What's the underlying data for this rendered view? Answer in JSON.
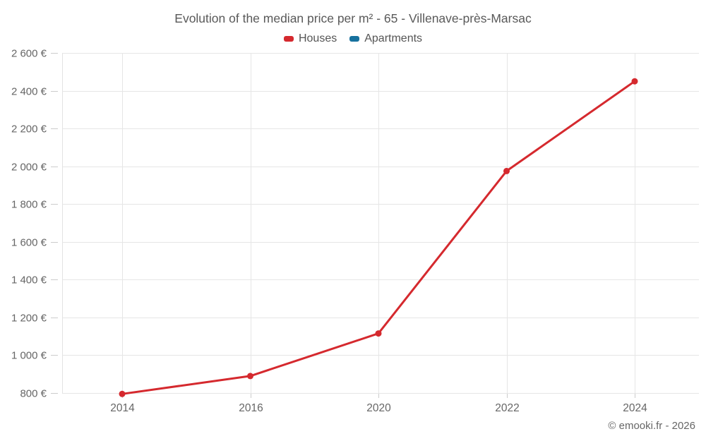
{
  "header": {
    "title": "Evolution of the median price per m² - 65 - Villenave-près-Marsac"
  },
  "legend": {
    "items": [
      {
        "label": "Houses",
        "color": "#d5292e"
      },
      {
        "label": "Apartments",
        "color": "#17719e"
      }
    ]
  },
  "footer": {
    "credit": "© emooki.fr - 2026"
  },
  "colors": {
    "houses_line": "#d5292e",
    "apartments_line": "#17719e",
    "gridline": "#e6e6e6",
    "axis_line": "#e3e3e3",
    "tick": "#cccccc",
    "axis_label": "#666666",
    "title_text": "#595959"
  },
  "chart_data": {
    "type": "line",
    "title": "Evolution of the median price per m² - 65 - Villenave-près-Marsac",
    "categories": [
      "2014",
      "2016",
      "2020",
      "2022",
      "2024"
    ],
    "series": [
      {
        "name": "Houses",
        "color": "#d5292e",
        "values": [
          795,
          890,
          1115,
          1975,
          2450
        ]
      },
      {
        "name": "Apartments",
        "color": "#17719e",
        "values": []
      }
    ],
    "xlabel": "",
    "ylabel": "",
    "y_min": 800,
    "y_max": 2600,
    "y_step": 200,
    "y_tick_labels": [
      "800 €",
      "1 000 €",
      "1 200 €",
      "1 400 €",
      "1 600 €",
      "1 800 €",
      "2 000 €",
      "2 200 €",
      "2 400 €",
      "2 600 €"
    ],
    "grid": true,
    "legend_position": "top"
  }
}
